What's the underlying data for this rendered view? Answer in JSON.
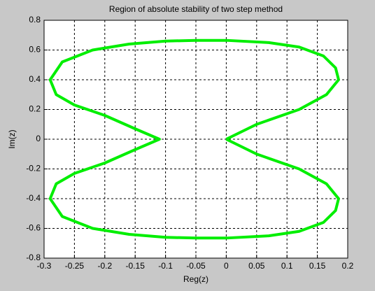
{
  "chart_data": {
    "type": "line",
    "title": "Region of absolute stability of two step method",
    "xlabel": "Reg(z)",
    "ylabel": "Im(z)",
    "xlim": [
      -0.3,
      0.2
    ],
    "ylim": [
      -0.8,
      0.8
    ],
    "xticks": [
      -0.3,
      -0.25,
      -0.2,
      -0.15,
      -0.1,
      -0.05,
      0,
      0.05,
      0.1,
      0.15,
      0.2
    ],
    "yticks": [
      -0.8,
      -0.6,
      -0.4,
      -0.2,
      0,
      0.2,
      0.4,
      0.6,
      0.8
    ],
    "grid": true,
    "series": [
      {
        "color": "#00ee00",
        "x": [
          0,
          0.05,
          0.12,
          0.165,
          0.185,
          0.18,
          0.16,
          0.12,
          0.07,
          0,
          -0.05,
          -0.1,
          -0.16,
          -0.22,
          -0.27,
          -0.29,
          -0.28,
          -0.25,
          -0.2,
          -0.15,
          -0.11,
          -0.15,
          -0.2,
          -0.25,
          -0.28,
          -0.29,
          -0.27,
          -0.22,
          -0.16,
          -0.1,
          -0.05,
          0,
          0.07,
          0.12,
          0.16,
          0.18,
          0.185,
          0.165,
          0.12,
          0.05,
          0
        ],
        "values": [
          0,
          0.1,
          0.2,
          0.3,
          0.4,
          0.48,
          0.56,
          0.62,
          0.65,
          0.665,
          0.665,
          0.66,
          0.64,
          0.6,
          0.52,
          0.4,
          0.3,
          0.23,
          0.16,
          0.07,
          0,
          -0.07,
          -0.16,
          -0.23,
          -0.3,
          -0.4,
          -0.52,
          -0.6,
          -0.64,
          -0.66,
          -0.665,
          -0.665,
          -0.65,
          -0.62,
          -0.56,
          -0.48,
          -0.4,
          -0.3,
          -0.2,
          -0.1,
          0
        ]
      }
    ]
  }
}
